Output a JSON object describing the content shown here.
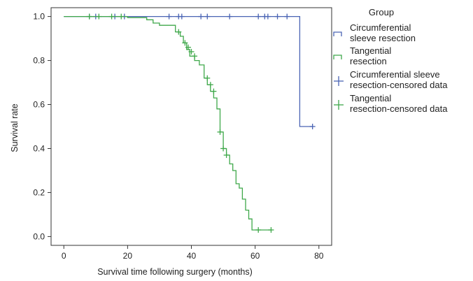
{
  "chart_data": {
    "type": "line",
    "subtype": "kaplan-meier",
    "xlabel": "Survival time following surgery (months)",
    "ylabel": "Survival rate",
    "xlim": [
      -4,
      84
    ],
    "ylim": [
      -0.04,
      1.04
    ],
    "x_ticks": [
      0,
      20,
      40,
      60,
      80
    ],
    "y_ticks": [
      0.0,
      0.2,
      0.4,
      0.6,
      0.8,
      1.0
    ],
    "x_tick_labels": [
      "0",
      "20",
      "40",
      "60",
      "80"
    ],
    "y_tick_labels": [
      "0.0",
      "0.2",
      "0.4",
      "0.6",
      "0.8",
      "1.0"
    ],
    "legend": {
      "title": "Group",
      "position": "right",
      "entries": [
        {
          "lines": [
            "Circumferential",
            "sleeve resection"
          ],
          "color": "#4a64b4",
          "kind": "line"
        },
        {
          "lines": [
            "Tangential",
            "resection"
          ],
          "color": "#3fa84a",
          "kind": "line"
        },
        {
          "lines": [
            "Circumferential sleeve",
            "resection-censored data"
          ],
          "color": "#4a64b4",
          "kind": "censor"
        },
        {
          "lines": [
            "Tangential",
            "resection-censored data"
          ],
          "color": "#3fa84a",
          "kind": "censor"
        }
      ]
    },
    "series": [
      {
        "name": "Circumferential sleeve resection",
        "color": "#4a64b4",
        "steps": [
          [
            0,
            1.0
          ],
          [
            74,
            1.0
          ],
          [
            74,
            0.5
          ],
          [
            78,
            0.5
          ]
        ],
        "censored": [
          [
            8,
            1.0
          ],
          [
            10,
            1.0
          ],
          [
            16,
            1.0
          ],
          [
            19,
            1.0
          ],
          [
            33,
            1.0
          ],
          [
            36,
            1.0
          ],
          [
            37,
            1.0
          ],
          [
            43,
            1.0
          ],
          [
            45,
            1.0
          ],
          [
            52,
            1.0
          ],
          [
            61,
            1.0
          ],
          [
            63,
            1.0
          ],
          [
            64,
            1.0
          ],
          [
            67,
            1.0
          ],
          [
            70,
            1.0
          ],
          [
            78,
            0.5
          ]
        ]
      },
      {
        "name": "Tangential resection",
        "color": "#3fa84a",
        "steps": [
          [
            0,
            1.0
          ],
          [
            20,
            1.0
          ],
          [
            20,
            0.995
          ],
          [
            26,
            0.995
          ],
          [
            26,
            0.985
          ],
          [
            28,
            0.985
          ],
          [
            28,
            0.97
          ],
          [
            30,
            0.97
          ],
          [
            30,
            0.96
          ],
          [
            35,
            0.96
          ],
          [
            35,
            0.93
          ],
          [
            36.5,
            0.93
          ],
          [
            36.5,
            0.91
          ],
          [
            37.5,
            0.91
          ],
          [
            37.5,
            0.88
          ],
          [
            38.5,
            0.88
          ],
          [
            38.5,
            0.85
          ],
          [
            39.5,
            0.85
          ],
          [
            39.5,
            0.82
          ],
          [
            41,
            0.82
          ],
          [
            41,
            0.8
          ],
          [
            42.5,
            0.8
          ],
          [
            42.5,
            0.78
          ],
          [
            44,
            0.78
          ],
          [
            44,
            0.72
          ],
          [
            45,
            0.72
          ],
          [
            45,
            0.69
          ],
          [
            46,
            0.69
          ],
          [
            46,
            0.66
          ],
          [
            47,
            0.66
          ],
          [
            47,
            0.63
          ],
          [
            48,
            0.63
          ],
          [
            48,
            0.58
          ],
          [
            49,
            0.58
          ],
          [
            49,
            0.475
          ],
          [
            50,
            0.475
          ],
          [
            50,
            0.4
          ],
          [
            51,
            0.4
          ],
          [
            51,
            0.37
          ],
          [
            52,
            0.37
          ],
          [
            52,
            0.33
          ],
          [
            53,
            0.33
          ],
          [
            53,
            0.3
          ],
          [
            54,
            0.3
          ],
          [
            54,
            0.24
          ],
          [
            55,
            0.24
          ],
          [
            55,
            0.22
          ],
          [
            56,
            0.22
          ],
          [
            56,
            0.17
          ],
          [
            57,
            0.17
          ],
          [
            57,
            0.12
          ],
          [
            58,
            0.12
          ],
          [
            58,
            0.08
          ],
          [
            59,
            0.08
          ],
          [
            59,
            0.03
          ],
          [
            65,
            0.03
          ]
        ],
        "censored": [
          [
            8,
            1.0
          ],
          [
            11,
            1.0
          ],
          [
            15,
            1.0
          ],
          [
            18,
            1.0
          ],
          [
            36,
            0.93
          ],
          [
            38,
            0.88
          ],
          [
            39,
            0.86
          ],
          [
            40,
            0.84
          ],
          [
            41,
            0.82
          ],
          [
            45,
            0.72
          ],
          [
            46,
            0.69
          ],
          [
            47,
            0.66
          ],
          [
            49,
            0.475
          ],
          [
            50,
            0.4
          ],
          [
            51,
            0.37
          ],
          [
            61,
            0.03
          ],
          [
            65,
            0.03
          ]
        ]
      }
    ]
  }
}
